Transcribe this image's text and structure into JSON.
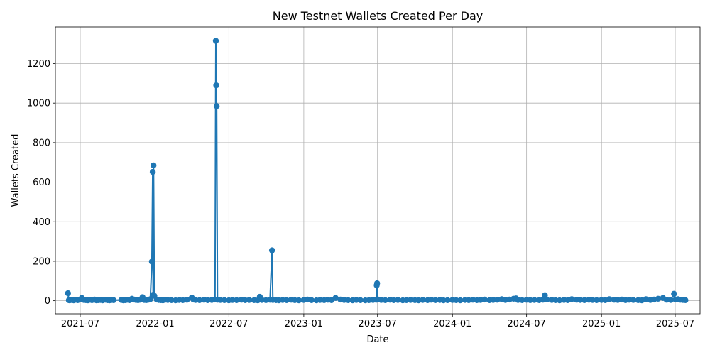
{
  "chart_data": {
    "type": "line",
    "title": "New Testnet Wallets Created Per Day",
    "xlabel": "Date",
    "ylabel": "Wallets Created",
    "grid": true,
    "marker": "circle",
    "color": "#1f77b4",
    "xlim": [
      "2021-05-01",
      "2025-08-31"
    ],
    "ylim": [
      -66,
      1385
    ],
    "x_ticks": [
      "2021-07",
      "2022-01",
      "2022-07",
      "2023-01",
      "2023-07",
      "2024-01",
      "2024-07",
      "2025-01",
      "2025-07"
    ],
    "y_ticks": [
      0,
      200,
      400,
      600,
      800,
      1000,
      1200
    ],
    "series": [
      {
        "points": [
          [
            "2021-06-01",
            38
          ],
          [
            "2021-06-03",
            3
          ],
          [
            "2021-06-05",
            2
          ],
          [
            "2021-06-10",
            4
          ],
          [
            "2021-06-15",
            2
          ],
          [
            "2021-06-20",
            5
          ],
          [
            "2021-06-25",
            3
          ],
          [
            "2021-06-30",
            6
          ],
          [
            "2021-07-05",
            14
          ],
          [
            "2021-07-10",
            4
          ],
          [
            "2021-07-15",
            3
          ],
          [
            "2021-07-20",
            2
          ],
          [
            "2021-07-25",
            5
          ],
          [
            "2021-07-30",
            3
          ],
          [
            "2021-08-05",
            6
          ],
          [
            "2021-08-10",
            2
          ],
          [
            "2021-08-15",
            3
          ],
          [
            "2021-08-20",
            4
          ],
          [
            "2021-08-25",
            2
          ],
          [
            "2021-09-01",
            5
          ],
          [
            "2021-09-06",
            3
          ],
          [
            "2021-09-11",
            2
          ],
          [
            "2021-09-16",
            4
          ],
          [
            "2021-09-21",
            3
          ],
          [
            "2021-10-10",
            4
          ],
          [
            "2021-10-15",
            2
          ],
          [
            "2021-10-20",
            3
          ],
          [
            "2021-10-25",
            5
          ],
          [
            "2021-10-30",
            3
          ],
          [
            "2021-11-05",
            10
          ],
          [
            "2021-11-10",
            6
          ],
          [
            "2021-11-15",
            4
          ],
          [
            "2021-11-20",
            3
          ],
          [
            "2021-11-25",
            5
          ],
          [
            "2021-12-01",
            18
          ],
          [
            "2021-12-05",
            4
          ],
          [
            "2021-12-10",
            3
          ],
          [
            "2021-12-15",
            5
          ],
          [
            "2021-12-20",
            8
          ],
          [
            "2021-12-24",
            198
          ],
          [
            "2021-12-26",
            652
          ],
          [
            "2021-12-27",
            30
          ],
          [
            "2021-12-28",
            685
          ],
          [
            "2021-12-30",
            25
          ],
          [
            "2022-01-05",
            6
          ],
          [
            "2022-01-10",
            4
          ],
          [
            "2022-01-15",
            3
          ],
          [
            "2022-01-20",
            2
          ],
          [
            "2022-01-25",
            5
          ],
          [
            "2022-02-01",
            4
          ],
          [
            "2022-02-10",
            3
          ],
          [
            "2022-02-20",
            2
          ],
          [
            "2022-03-01",
            4
          ],
          [
            "2022-03-10",
            3
          ],
          [
            "2022-03-20",
            5
          ],
          [
            "2022-04-01",
            16
          ],
          [
            "2022-04-05",
            6
          ],
          [
            "2022-04-10",
            4
          ],
          [
            "2022-04-20",
            3
          ],
          [
            "2022-05-01",
            5
          ],
          [
            "2022-05-10",
            3
          ],
          [
            "2022-05-20",
            4
          ],
          [
            "2022-05-28",
            6
          ],
          [
            "2022-05-30",
            1315
          ],
          [
            "2022-05-31",
            1090
          ],
          [
            "2022-06-01",
            985
          ],
          [
            "2022-06-03",
            5
          ],
          [
            "2022-06-10",
            4
          ],
          [
            "2022-06-20",
            3
          ],
          [
            "2022-07-01",
            2
          ],
          [
            "2022-07-10",
            4
          ],
          [
            "2022-07-20",
            3
          ],
          [
            "2022-08-01",
            5
          ],
          [
            "2022-08-10",
            3
          ],
          [
            "2022-08-20",
            4
          ],
          [
            "2022-09-01",
            3
          ],
          [
            "2022-09-10",
            2
          ],
          [
            "2022-09-15",
            20
          ],
          [
            "2022-09-20",
            4
          ],
          [
            "2022-09-30",
            3
          ],
          [
            "2022-10-10",
            5
          ],
          [
            "2022-10-15",
            255
          ],
          [
            "2022-10-17",
            4
          ],
          [
            "2022-10-25",
            3
          ],
          [
            "2022-11-01",
            2
          ],
          [
            "2022-11-10",
            4
          ],
          [
            "2022-11-20",
            3
          ],
          [
            "2022-12-01",
            5
          ],
          [
            "2022-12-10",
            3
          ],
          [
            "2022-12-20",
            2
          ],
          [
            "2023-01-01",
            4
          ],
          [
            "2023-01-10",
            6
          ],
          [
            "2023-01-20",
            3
          ],
          [
            "2023-02-01",
            2
          ],
          [
            "2023-02-10",
            4
          ],
          [
            "2023-02-20",
            3
          ],
          [
            "2023-03-01",
            5
          ],
          [
            "2023-03-10",
            3
          ],
          [
            "2023-03-20",
            14
          ],
          [
            "2023-04-01",
            6
          ],
          [
            "2023-04-10",
            4
          ],
          [
            "2023-04-20",
            3
          ],
          [
            "2023-05-01",
            2
          ],
          [
            "2023-05-10",
            4
          ],
          [
            "2023-05-20",
            3
          ],
          [
            "2023-06-01",
            2
          ],
          [
            "2023-06-10",
            3
          ],
          [
            "2023-06-20",
            4
          ],
          [
            "2023-06-28",
            5
          ],
          [
            "2023-06-29",
            78
          ],
          [
            "2023-06-30",
            88
          ],
          [
            "2023-07-02",
            6
          ],
          [
            "2023-07-10",
            4
          ],
          [
            "2023-07-20",
            3
          ],
          [
            "2023-08-01",
            5
          ],
          [
            "2023-08-10",
            3
          ],
          [
            "2023-08-20",
            4
          ],
          [
            "2023-09-01",
            2
          ],
          [
            "2023-09-10",
            3
          ],
          [
            "2023-09-20",
            4
          ],
          [
            "2023-10-01",
            3
          ],
          [
            "2023-10-10",
            2
          ],
          [
            "2023-10-20",
            4
          ],
          [
            "2023-11-01",
            3
          ],
          [
            "2023-11-10",
            5
          ],
          [
            "2023-11-20",
            3
          ],
          [
            "2023-12-01",
            4
          ],
          [
            "2023-12-10",
            2
          ],
          [
            "2023-12-20",
            3
          ],
          [
            "2024-01-01",
            4
          ],
          [
            "2024-01-10",
            3
          ],
          [
            "2024-01-20",
            2
          ],
          [
            "2024-02-01",
            4
          ],
          [
            "2024-02-10",
            3
          ],
          [
            "2024-02-20",
            5
          ],
          [
            "2024-03-01",
            3
          ],
          [
            "2024-03-10",
            4
          ],
          [
            "2024-03-20",
            6
          ],
          [
            "2024-04-01",
            3
          ],
          [
            "2024-04-10",
            4
          ],
          [
            "2024-04-20",
            5
          ],
          [
            "2024-05-01",
            8
          ],
          [
            "2024-05-10",
            4
          ],
          [
            "2024-05-20",
            6
          ],
          [
            "2024-05-30",
            10
          ],
          [
            "2024-06-05",
            12
          ],
          [
            "2024-06-10",
            4
          ],
          [
            "2024-06-20",
            3
          ],
          [
            "2024-07-01",
            5
          ],
          [
            "2024-07-10",
            3
          ],
          [
            "2024-07-20",
            4
          ],
          [
            "2024-08-01",
            3
          ],
          [
            "2024-08-10",
            5
          ],
          [
            "2024-08-15",
            28
          ],
          [
            "2024-08-20",
            6
          ],
          [
            "2024-09-01",
            4
          ],
          [
            "2024-09-10",
            3
          ],
          [
            "2024-09-20",
            2
          ],
          [
            "2024-10-01",
            4
          ],
          [
            "2024-10-10",
            3
          ],
          [
            "2024-10-20",
            8
          ],
          [
            "2024-11-01",
            5
          ],
          [
            "2024-11-10",
            4
          ],
          [
            "2024-11-20",
            3
          ],
          [
            "2024-12-01",
            5
          ],
          [
            "2024-12-10",
            4
          ],
          [
            "2024-12-20",
            3
          ],
          [
            "2025-01-01",
            4
          ],
          [
            "2025-01-10",
            3
          ],
          [
            "2025-01-20",
            8
          ],
          [
            "2025-02-01",
            5
          ],
          [
            "2025-02-10",
            4
          ],
          [
            "2025-02-20",
            6
          ],
          [
            "2025-03-01",
            3
          ],
          [
            "2025-03-10",
            5
          ],
          [
            "2025-03-20",
            4
          ],
          [
            "2025-04-01",
            3
          ],
          [
            "2025-04-10",
            2
          ],
          [
            "2025-04-20",
            8
          ],
          [
            "2025-05-01",
            4
          ],
          [
            "2025-05-10",
            6
          ],
          [
            "2025-05-20",
            10
          ],
          [
            "2025-06-01",
            14
          ],
          [
            "2025-06-10",
            5
          ],
          [
            "2025-06-20",
            4
          ],
          [
            "2025-06-28",
            35
          ],
          [
            "2025-07-02",
            6
          ],
          [
            "2025-07-08",
            8
          ],
          [
            "2025-07-14",
            5
          ],
          [
            "2025-07-20",
            4
          ],
          [
            "2025-07-26",
            3
          ]
        ]
      }
    ]
  }
}
